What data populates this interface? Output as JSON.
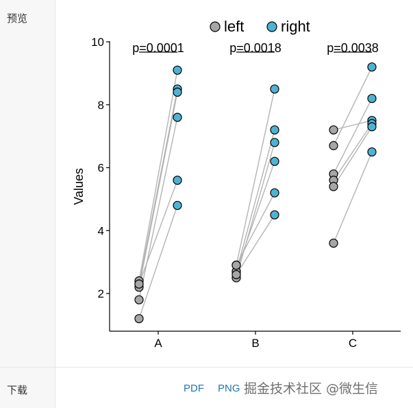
{
  "sidebar": {
    "preview_label": "预览",
    "download_label": "下载"
  },
  "downloads": {
    "pdf": "PDF",
    "png": "PNG"
  },
  "watermark": "掘金技术社区 @微生信",
  "colors": {
    "left": "#a6a6a6",
    "right": "#4eb3d3",
    "line": "#b3b3b3"
  },
  "chart_data": {
    "type": "scatter",
    "ylabel": "Values",
    "xlabel": "",
    "ylim": [
      0.8,
      10
    ],
    "yticks": [
      2,
      4,
      6,
      8,
      10
    ],
    "categories": [
      "A",
      "B",
      "C"
    ],
    "legend": {
      "position": "top",
      "entries": [
        "left",
        "right"
      ]
    },
    "grid": false,
    "groups": [
      {
        "name": "A",
        "pvalue": "p=0.0001",
        "pairs": [
          [
            2.4,
            9.1
          ],
          [
            2.3,
            8.5
          ],
          [
            2.2,
            8.4
          ],
          [
            1.8,
            7.6
          ],
          [
            2.3,
            5.6
          ],
          [
            1.2,
            4.8
          ]
        ]
      },
      {
        "name": "B",
        "pvalue": "p=0.0018",
        "pairs": [
          [
            2.9,
            8.5
          ],
          [
            2.7,
            7.2
          ],
          [
            2.5,
            6.8
          ],
          [
            2.7,
            6.2
          ],
          [
            2.9,
            5.2
          ],
          [
            2.6,
            4.5
          ]
        ]
      },
      {
        "name": "C",
        "pvalue": "p=0.0038",
        "pairs": [
          [
            7.2,
            7.5
          ],
          [
            6.7,
            9.2
          ],
          [
            5.8,
            8.2
          ],
          [
            5.6,
            7.4
          ],
          [
            5.4,
            7.3
          ],
          [
            3.6,
            6.5
          ]
        ]
      }
    ]
  }
}
